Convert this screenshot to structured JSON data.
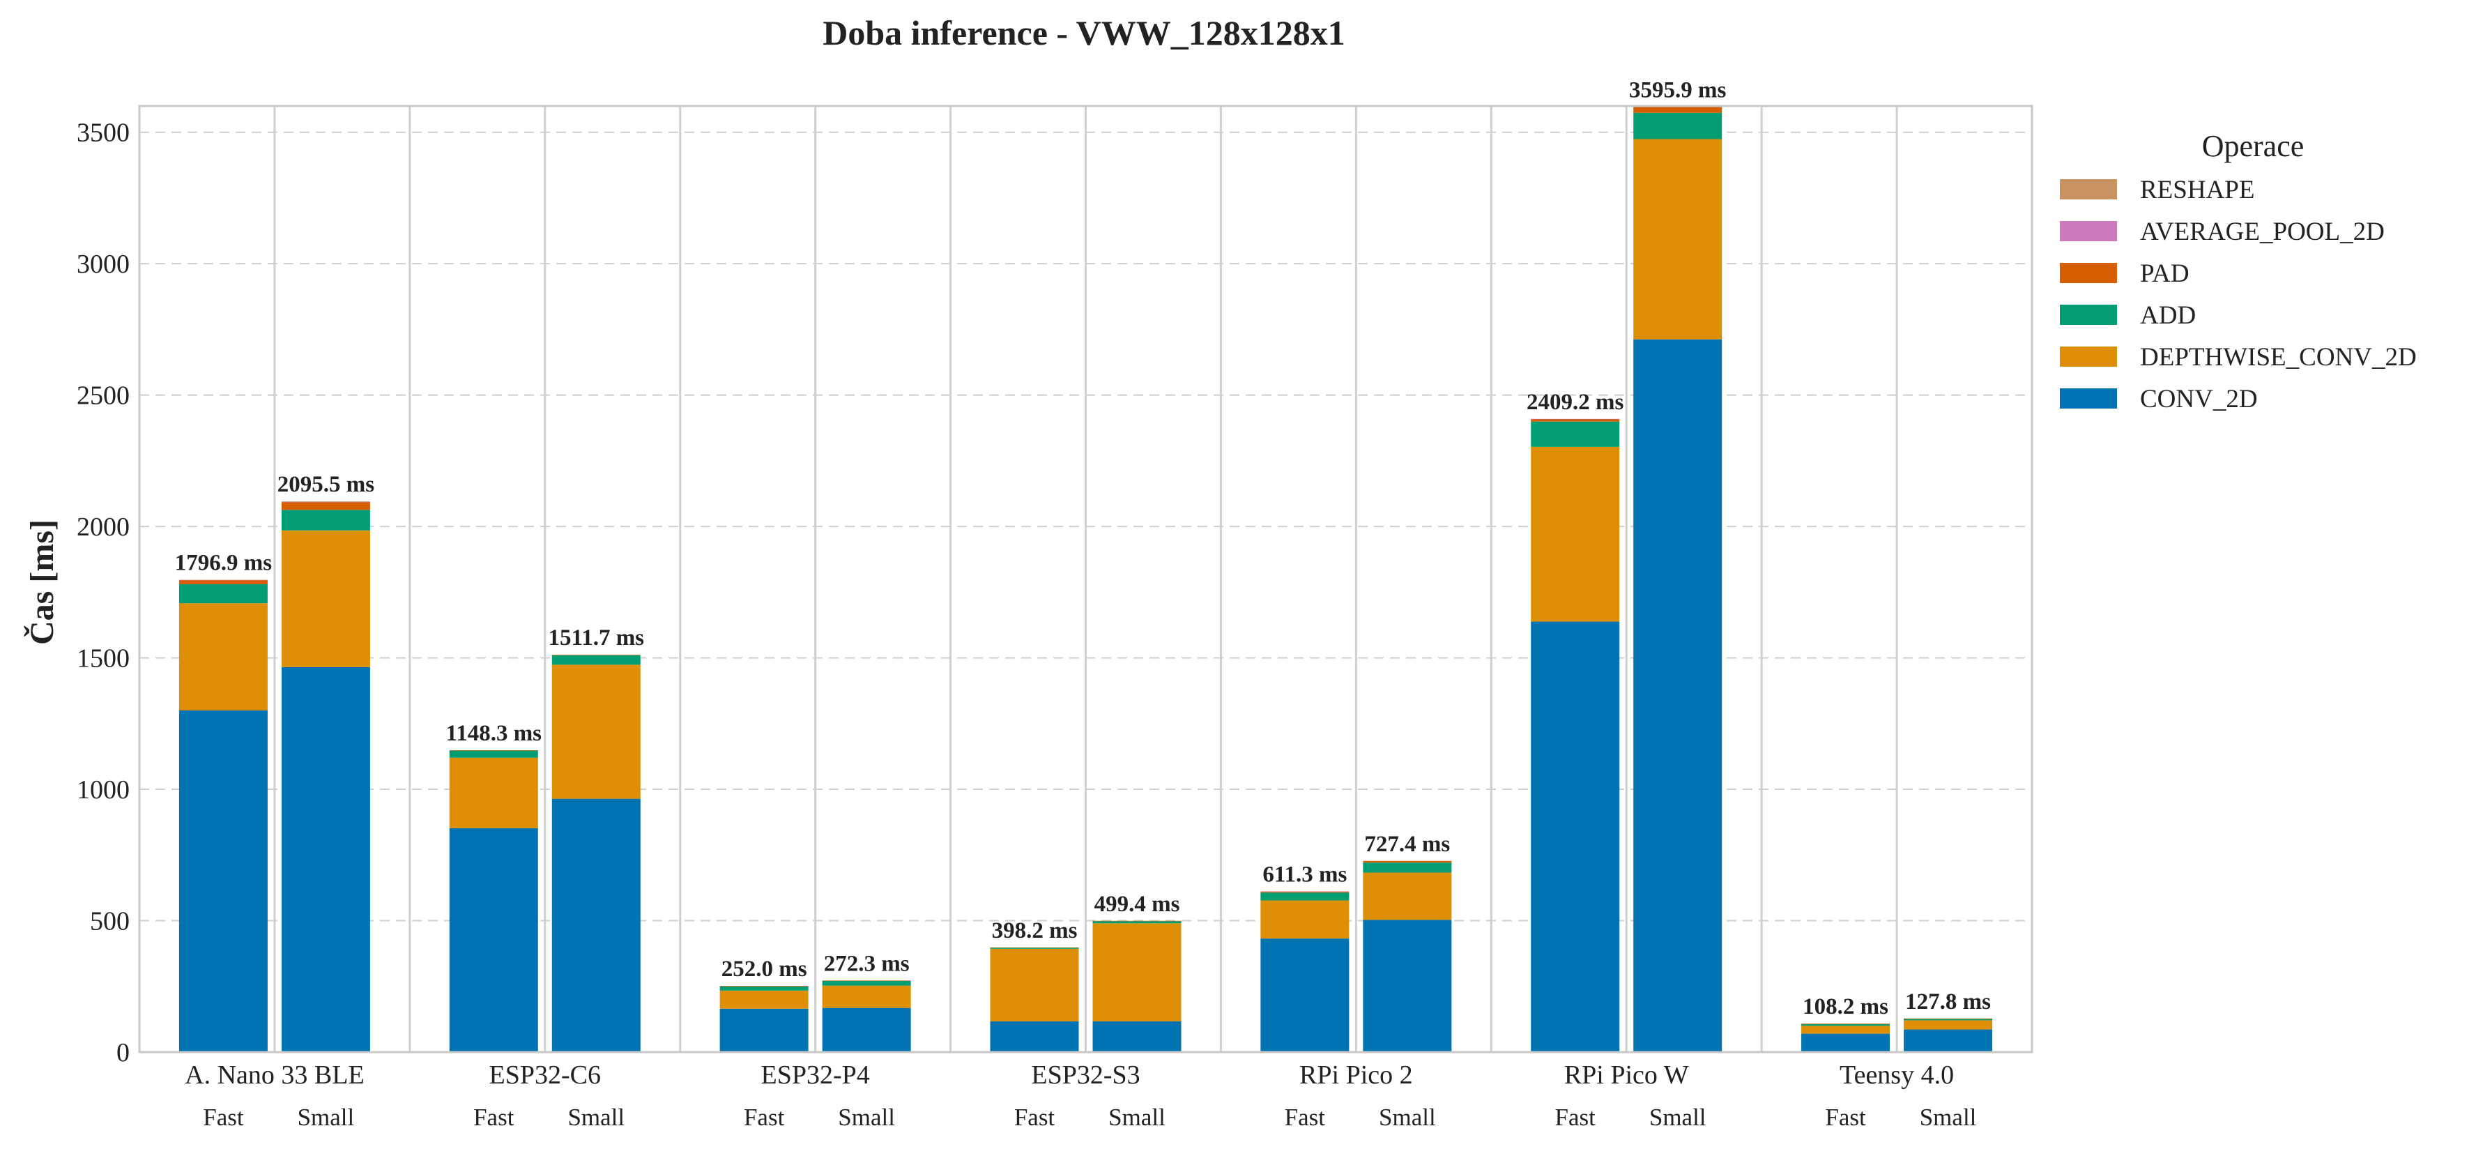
{
  "chart_data": {
    "type": "bar",
    "stacked": true,
    "title": "Doba inference - VWW_128x128x1",
    "xlabel": "",
    "ylabel": "Čas [ms]",
    "ylim": [
      0,
      3600
    ],
    "yticks": [
      0,
      500,
      1000,
      1500,
      2000,
      2500,
      3000,
      3500
    ],
    "grid": "horizontal dashed",
    "legend_title": "Operace",
    "legend_placement": "right, outside plot",
    "groups": [
      "A. Nano 33 BLE",
      "ESP32-C6",
      "ESP32-P4",
      "ESP32-S3",
      "RPi Pico 2",
      "RPi Pico W",
      "Teensy 4.0"
    ],
    "subcategories": [
      "Fast",
      "Small"
    ],
    "series": [
      {
        "name": "CONV_2D",
        "color": "#0173b2",
        "values": [
          [
            1300,
            1465
          ],
          [
            852,
            964
          ],
          [
            165,
            168
          ],
          [
            117,
            117
          ],
          [
            432,
            503
          ],
          [
            1638,
            2712
          ],
          [
            70,
            86
          ]
        ]
      },
      {
        "name": "DEPTHWISE_CONV_2D",
        "color": "#de8f05",
        "values": [
          [
            408,
            520
          ],
          [
            268,
            510
          ],
          [
            69,
            85
          ],
          [
            276,
            373
          ],
          [
            145,
            180
          ],
          [
            665,
            762
          ],
          [
            30,
            35
          ]
        ]
      },
      {
        "name": "ADD",
        "color": "#029e73",
        "values": [
          [
            72,
            78
          ],
          [
            28,
            36
          ],
          [
            16,
            18
          ],
          [
            4,
            8
          ],
          [
            30,
            38
          ],
          [
            96,
            100
          ],
          [
            6,
            5
          ]
        ]
      },
      {
        "name": "PAD",
        "color": "#d55e00",
        "values": [
          [
            16,
            30
          ],
          [
            0.3,
            1.7
          ],
          [
            2,
            1.3
          ],
          [
            1.2,
            1.4
          ],
          [
            4,
            6.4
          ],
          [
            10,
            21.9
          ],
          [
            2.2,
            1.8
          ]
        ]
      },
      {
        "name": "AVERAGE_POOL_2D",
        "color": "#cc78bc",
        "values": [
          [
            0.4,
            0.5
          ],
          [
            0,
            0
          ],
          [
            0,
            0
          ],
          [
            0,
            0
          ],
          [
            0.3,
            0
          ],
          [
            0.2,
            0
          ],
          [
            0,
            0
          ]
        ]
      },
      {
        "name": "RESHAPE",
        "color": "#ca9161",
        "values": [
          [
            0.5,
            2
          ],
          [
            0,
            0
          ],
          [
            0,
            0
          ],
          [
            0,
            0
          ],
          [
            0,
            0
          ],
          [
            0,
            0
          ],
          [
            0,
            0
          ]
        ]
      }
    ],
    "totals_labels": [
      [
        "1796.9 ms",
        "2095.5 ms"
      ],
      [
        "1148.3 ms",
        "1511.7 ms"
      ],
      [
        "252.0 ms",
        "272.3 ms"
      ],
      [
        "398.2 ms",
        "499.4 ms"
      ],
      [
        "611.3 ms",
        "727.4 ms"
      ],
      [
        "2409.2 ms",
        "3595.9 ms"
      ],
      [
        "108.2 ms",
        "127.8 ms"
      ]
    ]
  }
}
